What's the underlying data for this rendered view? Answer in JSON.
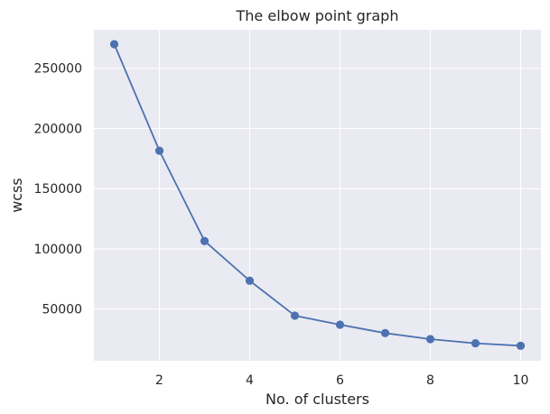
{
  "chart_data": {
    "type": "line",
    "title": "The elbow point graph",
    "xlabel": "No. of clusters",
    "ylabel": "wcss",
    "x": [
      1,
      2,
      3,
      4,
      5,
      6,
      7,
      8,
      9,
      10
    ],
    "series": [
      {
        "values": [
          270000,
          181500,
          106500,
          73500,
          44500,
          37000,
          30000,
          25000,
          21500,
          19500
        ],
        "color": "#4c72b0",
        "marker": "circle"
      }
    ],
    "xticks": [
      2,
      4,
      6,
      8,
      10
    ],
    "xtick_labels": [
      "2",
      "4",
      "6",
      "8",
      "10"
    ],
    "yticks": [
      50000,
      100000,
      150000,
      200000,
      250000
    ],
    "ytick_labels": [
      "50000",
      "100000",
      "150000",
      "200000",
      "250000"
    ],
    "xlim": [
      0.55,
      10.45
    ],
    "ylim": [
      7000,
      282000
    ],
    "grid": true,
    "legend": "none",
    "style": {
      "background": "#eaeaf2",
      "grid_color": "#ffffff"
    }
  }
}
